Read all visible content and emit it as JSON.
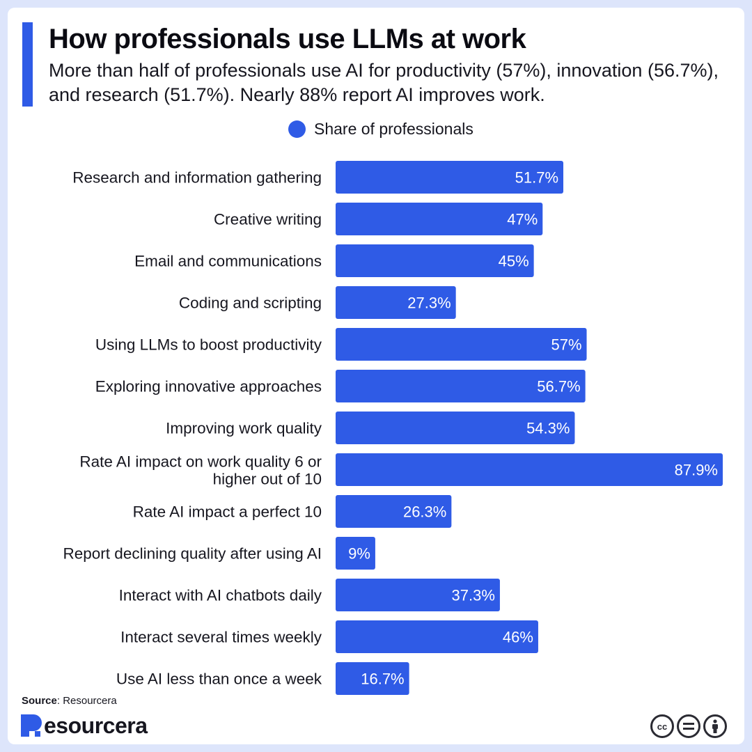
{
  "colors": {
    "background": "#dde5fb",
    "card": "#ffffff",
    "accent": "#2f5be6",
    "bar": "#2f5be6",
    "text": "#16161f"
  },
  "header": {
    "title": "How professionals use LLMs at work",
    "subtitle": "More than half of professionals use AI for productivity (57%), innovation (56.7%), and research (51.7%). Nearly 88% report AI improves work."
  },
  "footer": {
    "source_label": "Source",
    "source_text": ": Resourcera",
    "brand": "esourcera",
    "license_icons": [
      "cc-icon",
      "equals-icon",
      "person-icon"
    ],
    "cc_text": "cc"
  },
  "chart_data": {
    "type": "bar",
    "orientation": "horizontal",
    "legend": {
      "entries": [
        "Share of professionals"
      ],
      "placement": "top-center"
    },
    "categories": [
      [
        "Research and information gathering"
      ],
      [
        "Creative writing"
      ],
      [
        "Email and communications"
      ],
      [
        "Coding and scripting"
      ],
      [
        "Using LLMs to boost productivity"
      ],
      [
        "Exploring innovative approaches"
      ],
      [
        "Improving work quality"
      ],
      [
        "Rate AI impact on work quality 6 or",
        "higher out of 10"
      ],
      [
        "Rate AI impact a perfect 10"
      ],
      [
        "Report declining quality after using AI"
      ],
      [
        "Interact with AI chatbots daily"
      ],
      [
        "Interact several times weekly"
      ],
      [
        "Use AI less than once a week"
      ]
    ],
    "series": [
      {
        "name": "Share of professionals",
        "values": [
          51.7,
          47,
          45,
          27.3,
          57,
          56.7,
          54.3,
          87.9,
          26.3,
          9,
          37.3,
          46,
          16.7
        ],
        "labels": [
          "51.7%",
          "47%",
          "45%",
          "27.3%",
          "57%",
          "56.7%",
          "54.3%",
          "87.9%",
          "26.3%",
          "9%",
          "37.3%",
          "46%",
          "16.7%"
        ]
      }
    ],
    "xlim": [
      0,
      87.9
    ],
    "grid": false
  }
}
